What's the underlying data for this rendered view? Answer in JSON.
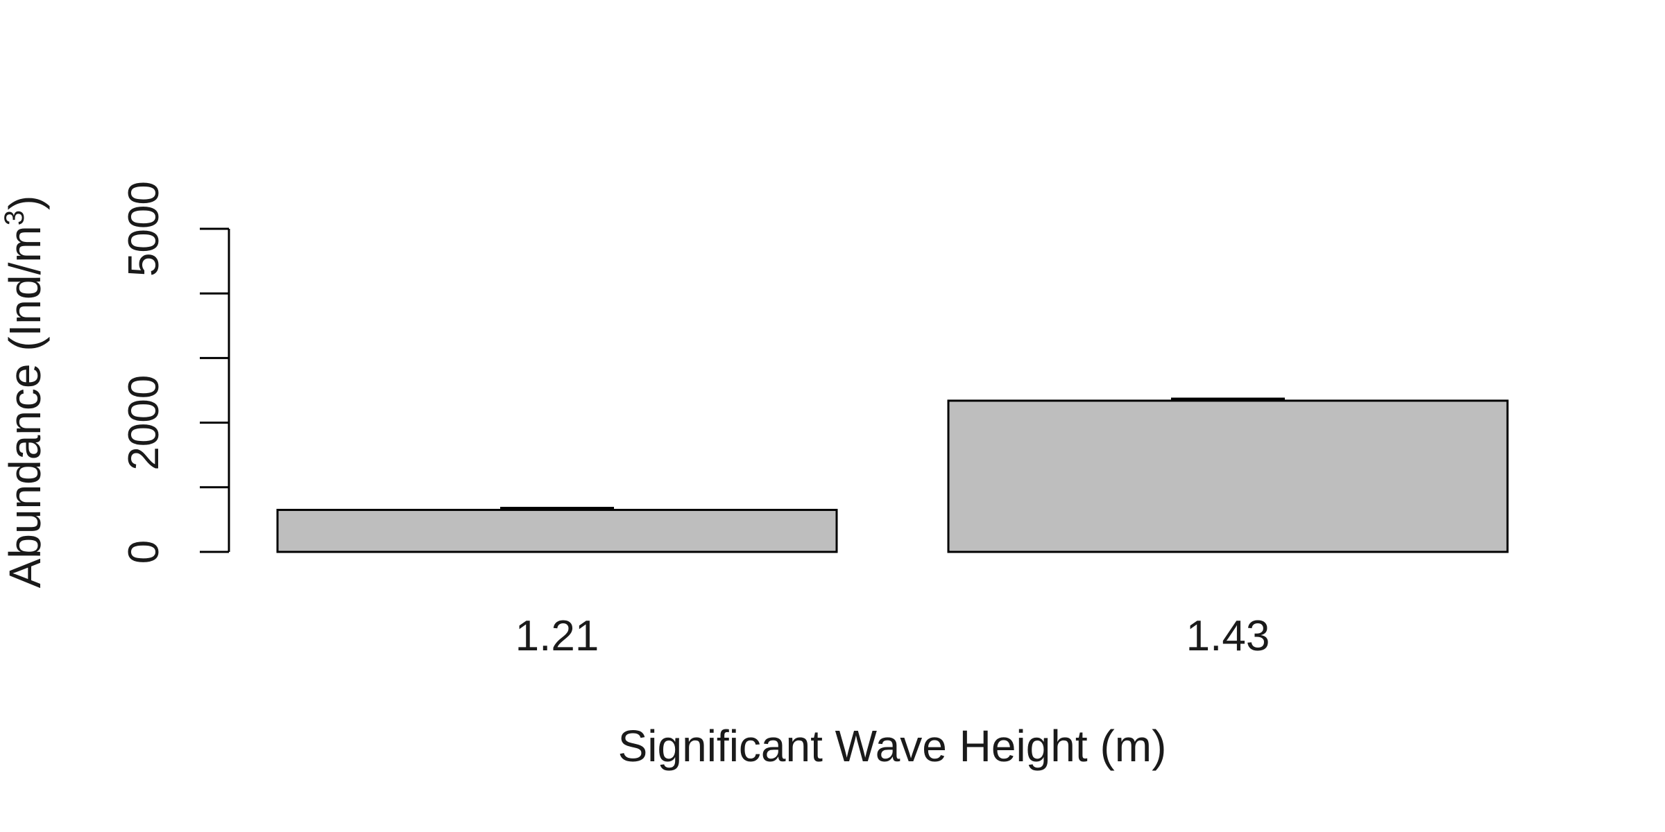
{
  "chart_data": {
    "type": "bar",
    "categories": [
      "1.21",
      "1.43"
    ],
    "values": [
      650,
      2340
    ],
    "error_upper": [
      670,
      2360
    ],
    "yticks": [
      0,
      1000,
      2000,
      3000,
      4000,
      5000
    ],
    "ytick_labels": [
      "0",
      "",
      "2000",
      "",
      "",
      "5000"
    ],
    "ylim": [
      0,
      5000
    ],
    "xlabel": "Significant Wave Height (m)",
    "ylabel_prefix": "Abundance (Ind/m",
    "ylabel_superscript": "3",
    "ylabel_suffix": ")",
    "bar_color": "#bebebe",
    "grid": false
  }
}
